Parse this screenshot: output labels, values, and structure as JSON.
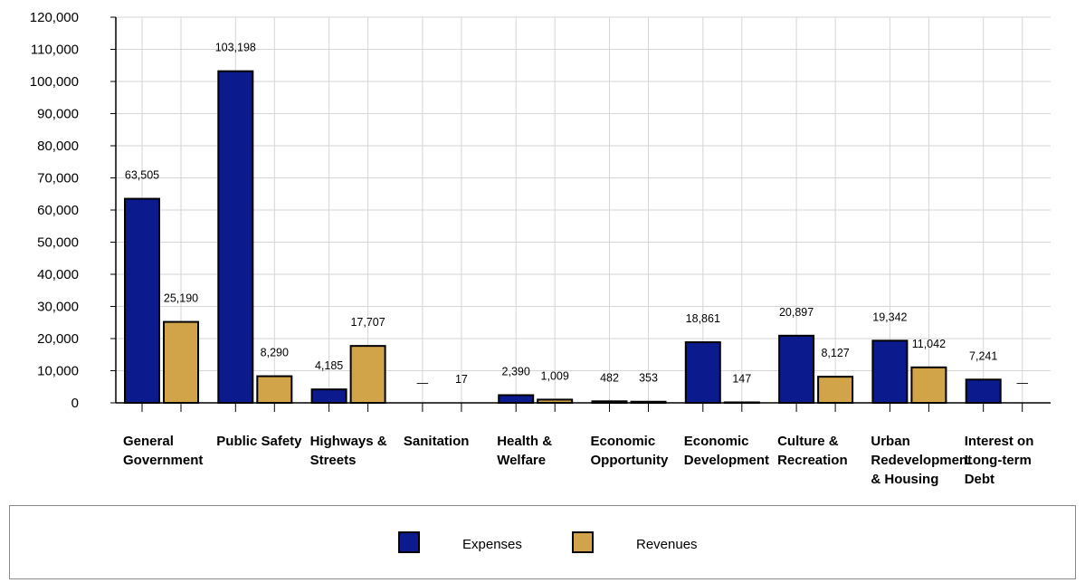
{
  "chart_data": {
    "type": "bar",
    "categories": [
      "General\nGovernment",
      "Public Safety",
      "Highways &\nStreets",
      "Sanitation",
      "Health &\nWelfare",
      "Economic\nOpportunity",
      "Economic\nDevelopment",
      "Culture &\nRecreation",
      "Urban\nRedevelopment\n& Housing",
      "Interest on\nLong-term\nDebt"
    ],
    "series": [
      {
        "name": "Expenses",
        "color": "#0b1a8c",
        "values": [
          63505,
          103198,
          4185,
          0,
          2390,
          482,
          18861,
          20897,
          19342,
          7241
        ],
        "labels": [
          "63,505",
          "103,198",
          "4,185",
          "—",
          "2,390",
          "482",
          "18,861",
          "20,897",
          "19,342",
          "7,241"
        ]
      },
      {
        "name": "Revenues",
        "color": "#d1a449",
        "values": [
          25190,
          8290,
          17707,
          17,
          1009,
          353,
          147,
          8127,
          11042,
          0
        ],
        "labels": [
          "25,190",
          "8,290",
          "17,707",
          "17",
          "1,009",
          "353",
          "147",
          "8,127",
          "11,042",
          "—"
        ]
      }
    ],
    "ylim": [
      0,
      120000
    ],
    "y_ticks": [
      0,
      10000,
      20000,
      30000,
      40000,
      50000,
      60000,
      70000,
      80000,
      90000,
      100000,
      110000,
      120000
    ],
    "y_tick_labels": [
      "0",
      "10,000",
      "20,000",
      "30,000",
      "40,000",
      "50,000",
      "60,000",
      "70,000",
      "80,000",
      "90,000",
      "100,000",
      "110,000",
      "120,000"
    ],
    "grid": true,
    "legend_position": "bottom"
  },
  "legend": {
    "expenses_label": "Expenses",
    "revenues_label": "Revenues"
  }
}
